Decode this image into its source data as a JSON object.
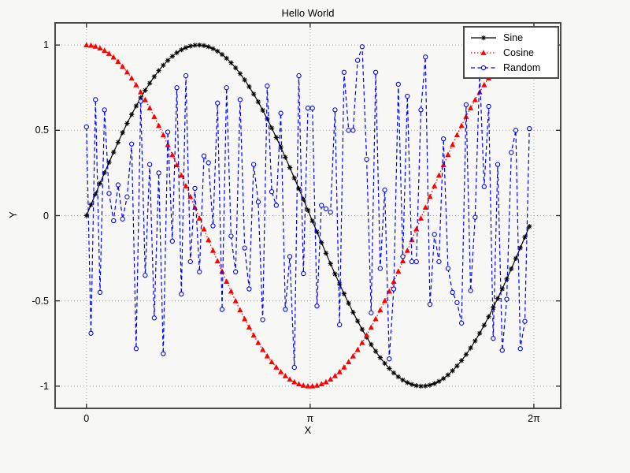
{
  "chart_data": {
    "type": "line",
    "title": "Hello World",
    "xlabel": "X",
    "ylabel": "Y",
    "xlim": [
      -0.44,
      6.66
    ],
    "ylim": [
      -1.13,
      1.13
    ],
    "grid": true,
    "grid_style": "dotted",
    "legend_position": "top-right",
    "x_ticks": [
      {
        "value": 0,
        "label": "0"
      },
      {
        "value": 3.14159,
        "label": "π"
      },
      {
        "value": 6.28319,
        "label": "2π"
      }
    ],
    "y_ticks": [
      {
        "value": -1,
        "label": "-1"
      },
      {
        "value": -0.5,
        "label": "-0.5"
      },
      {
        "value": 0,
        "label": "0"
      },
      {
        "value": 0.5,
        "label": "0.5"
      },
      {
        "value": 1,
        "label": "1"
      }
    ],
    "x_sampling": {
      "start": 0,
      "stop": 6.22,
      "count": 99
    },
    "series": [
      {
        "name": "Sine",
        "color": "#000000",
        "line_style": "solid",
        "marker": "asterisk",
        "function": "sin"
      },
      {
        "name": "Cosine",
        "color": "#ff0000",
        "line_style": "dotted",
        "marker": "filled-triangle-up",
        "function": "cos"
      },
      {
        "name": "Random",
        "color": "#0000ff",
        "line_style": "dashed",
        "marker": "open-circle",
        "values": [
          0.52,
          -0.69,
          0.68,
          -0.45,
          0.62,
          0.13,
          -0.03,
          0.18,
          -0.02,
          0.11,
          0.42,
          -0.78,
          0.67,
          -0.35,
          0.3,
          -0.6,
          0.25,
          -0.81,
          0.49,
          -0.15,
          0.75,
          -0.46,
          0.82,
          -0.27,
          0.16,
          -0.33,
          0.35,
          0.31,
          -0.06,
          0.66,
          -0.55,
          0.75,
          -0.12,
          -0.33,
          0.68,
          -0.19,
          -0.43,
          0.3,
          0.08,
          -0.61,
          0.76,
          0.14,
          0.06,
          0.6,
          -0.55,
          -0.24,
          -0.89,
          0.82,
          -0.34,
          0.63,
          0.63,
          -0.53,
          0.06,
          0.04,
          0.02,
          0.62,
          -0.64,
          0.84,
          0.5,
          0.5,
          0.91,
          0.99,
          0.33,
          -0.57,
          0.84,
          -0.31,
          0.15,
          -0.84,
          -0.43,
          0.77,
          -0.24,
          0.7,
          -0.27,
          -0.27,
          0.62,
          0.93,
          -0.52,
          -0.11,
          -0.27,
          0.45,
          -0.31,
          -0.45,
          -0.51,
          -0.63,
          0.65,
          -0.44,
          -0.01,
          0.84,
          0.17,
          0.64,
          -0.72,
          0.3,
          -0.79,
          -0.49,
          0.37,
          0.5,
          -0.78,
          -0.62,
          0.51
        ]
      }
    ]
  }
}
